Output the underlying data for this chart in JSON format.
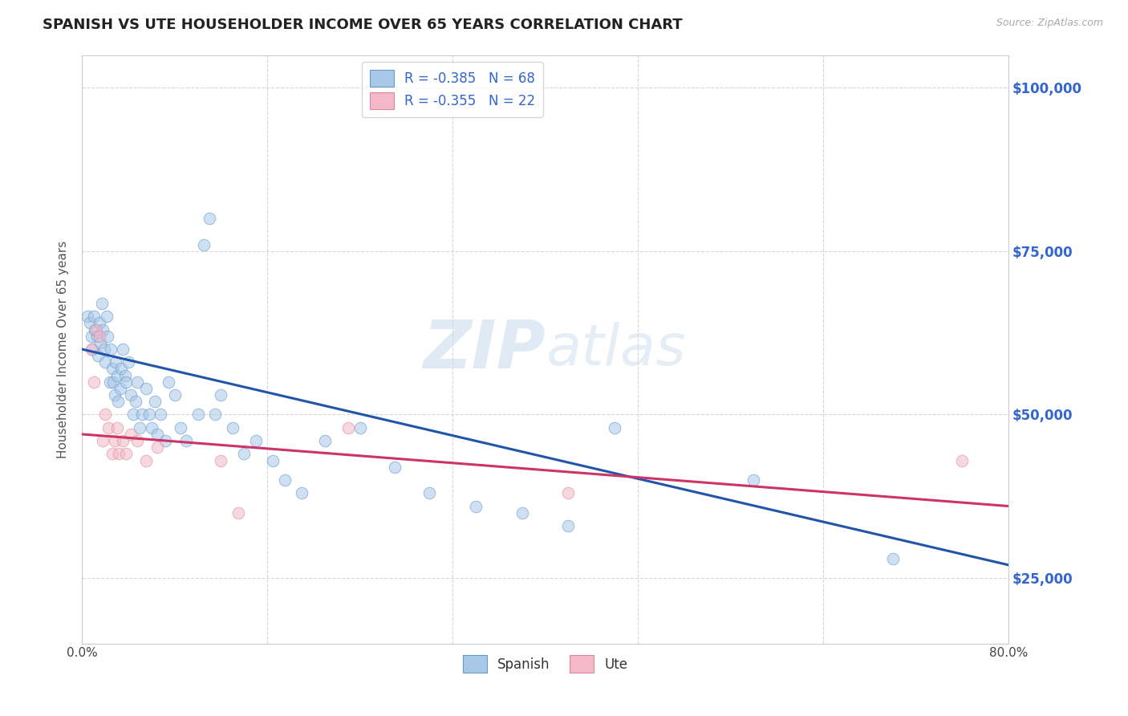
{
  "title": "SPANISH VS UTE HOUSEHOLDER INCOME OVER 65 YEARS CORRELATION CHART",
  "source": "Source: ZipAtlas.com",
  "ylabel": "Householder Income Over 65 years",
  "xlim": [
    0.0,
    0.8
  ],
  "ylim": [
    15000,
    105000
  ],
  "yticks": [
    25000,
    50000,
    75000,
    100000
  ],
  "ytick_labels": [
    "$25,000",
    "$50,000",
    "$75,000",
    "$100,000"
  ],
  "xticks": [
    0.0,
    0.16,
    0.32,
    0.48,
    0.64,
    0.8
  ],
  "xtick_labels": [
    "0.0%",
    "",
    "",
    "",
    "",
    "80.0%"
  ],
  "legend_R_label1": "R = -0.385",
  "legend_N_label1": "N = 68",
  "legend_R_label2": "R = -0.355",
  "legend_N_label2": "N = 22",
  "spanish_color": "#a8c8e8",
  "ute_color": "#f4b8c8",
  "spanish_edge_color": "#6699cc",
  "ute_edge_color": "#dd8899",
  "trend_spanish_color": "#2255aa",
  "trend_ute_color": "#cc3366",
  "title_color": "#222222",
  "axis_label_color": "#3366cc",
  "grid_color": "#cccccc",
  "background_color": "#ffffff",
  "watermark_zip": "ZIP",
  "watermark_atlas": "atlas",
  "spanish_x": [
    0.005,
    0.007,
    0.008,
    0.009,
    0.01,
    0.011,
    0.013,
    0.014,
    0.015,
    0.016,
    0.017,
    0.018,
    0.019,
    0.02,
    0.021,
    0.022,
    0.024,
    0.025,
    0.026,
    0.027,
    0.028,
    0.029,
    0.03,
    0.031,
    0.033,
    0.034,
    0.035,
    0.037,
    0.038,
    0.04,
    0.042,
    0.044,
    0.046,
    0.048,
    0.05,
    0.052,
    0.055,
    0.058,
    0.06,
    0.063,
    0.065,
    0.068,
    0.072,
    0.075,
    0.08,
    0.085,
    0.09,
    0.1,
    0.105,
    0.11,
    0.115,
    0.12,
    0.13,
    0.14,
    0.15,
    0.165,
    0.175,
    0.19,
    0.21,
    0.24,
    0.27,
    0.3,
    0.34,
    0.38,
    0.42,
    0.46,
    0.58,
    0.7
  ],
  "spanish_y": [
    65000,
    64000,
    62000,
    60000,
    65000,
    63000,
    62000,
    59000,
    64000,
    61000,
    67000,
    63000,
    60000,
    58000,
    65000,
    62000,
    55000,
    60000,
    57000,
    55000,
    53000,
    58000,
    56000,
    52000,
    54000,
    57000,
    60000,
    56000,
    55000,
    58000,
    53000,
    50000,
    52000,
    55000,
    48000,
    50000,
    54000,
    50000,
    48000,
    52000,
    47000,
    50000,
    46000,
    55000,
    53000,
    48000,
    46000,
    50000,
    76000,
    80000,
    50000,
    53000,
    48000,
    44000,
    46000,
    43000,
    40000,
    38000,
    46000,
    48000,
    42000,
    38000,
    36000,
    35000,
    33000,
    48000,
    40000,
    28000
  ],
  "ute_x": [
    0.008,
    0.01,
    0.012,
    0.015,
    0.018,
    0.02,
    0.023,
    0.026,
    0.028,
    0.03,
    0.032,
    0.035,
    0.038,
    0.042,
    0.048,
    0.055,
    0.065,
    0.12,
    0.135,
    0.23,
    0.42,
    0.76
  ],
  "ute_y": [
    60000,
    55000,
    63000,
    62000,
    46000,
    50000,
    48000,
    44000,
    46000,
    48000,
    44000,
    46000,
    44000,
    47000,
    46000,
    43000,
    45000,
    43000,
    35000,
    48000,
    38000,
    43000
  ],
  "spanish_trend_x": [
    0.0,
    0.8
  ],
  "spanish_trend_y": [
    60000,
    27000
  ],
  "ute_trend_x": [
    0.0,
    0.8
  ],
  "ute_trend_y": [
    47000,
    36000
  ],
  "marker_size": 110,
  "marker_alpha": 0.55,
  "bottom_legend_spanish": "Spanish",
  "bottom_legend_ute": "Ute"
}
